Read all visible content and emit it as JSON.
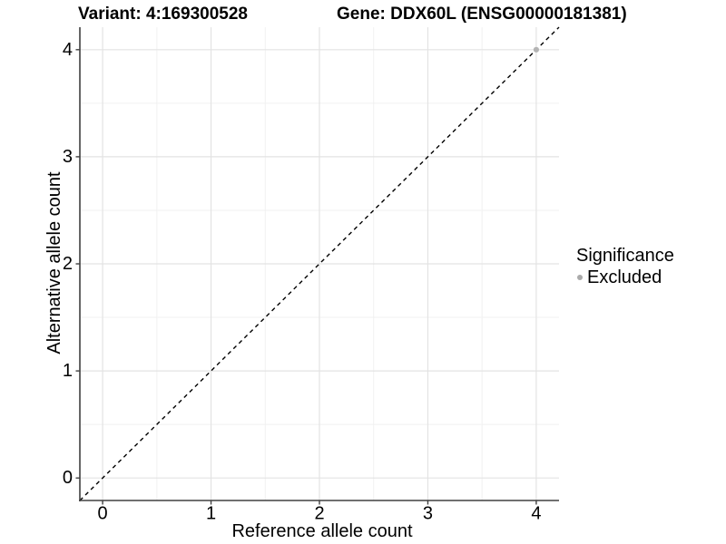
{
  "chart_data": {
    "type": "scatter",
    "titles": {
      "left": "Variant: 4:169300528",
      "right": "Gene: DDX60L (ENSG00000181381)"
    },
    "xlabel": "Reference allele count",
    "ylabel": "Alternative allele count",
    "xlim": [
      -0.21,
      4.21
    ],
    "ylim": [
      -0.21,
      4.21
    ],
    "x_ticks": [
      0,
      1,
      2,
      3,
      4
    ],
    "y_ticks": [
      0,
      1,
      2,
      3,
      4
    ],
    "x_minor_ticks": [
      0.5,
      1.5,
      2.5,
      3.5
    ],
    "y_minor_ticks": [
      0.5,
      1.5,
      2.5,
      3.5
    ],
    "grid": "major and minor gridlines on white panel",
    "legend": {
      "title": "Significance",
      "position": "right",
      "items": [
        {
          "label": "Excluded",
          "color": "#ababab"
        }
      ]
    },
    "series": [
      {
        "name": "Excluded",
        "color": "#b3b3b3",
        "points": [
          {
            "x": 4,
            "y": 4
          }
        ]
      }
    ],
    "reference_line": {
      "kind": "identity y=x",
      "style": "dashed",
      "color": "#000000"
    }
  },
  "colors": {
    "axis": "#404040",
    "tick": "#404040",
    "grid_major": "#e3e3e3",
    "grid_minor": "#f1f1f1",
    "background": "#ffffff"
  }
}
